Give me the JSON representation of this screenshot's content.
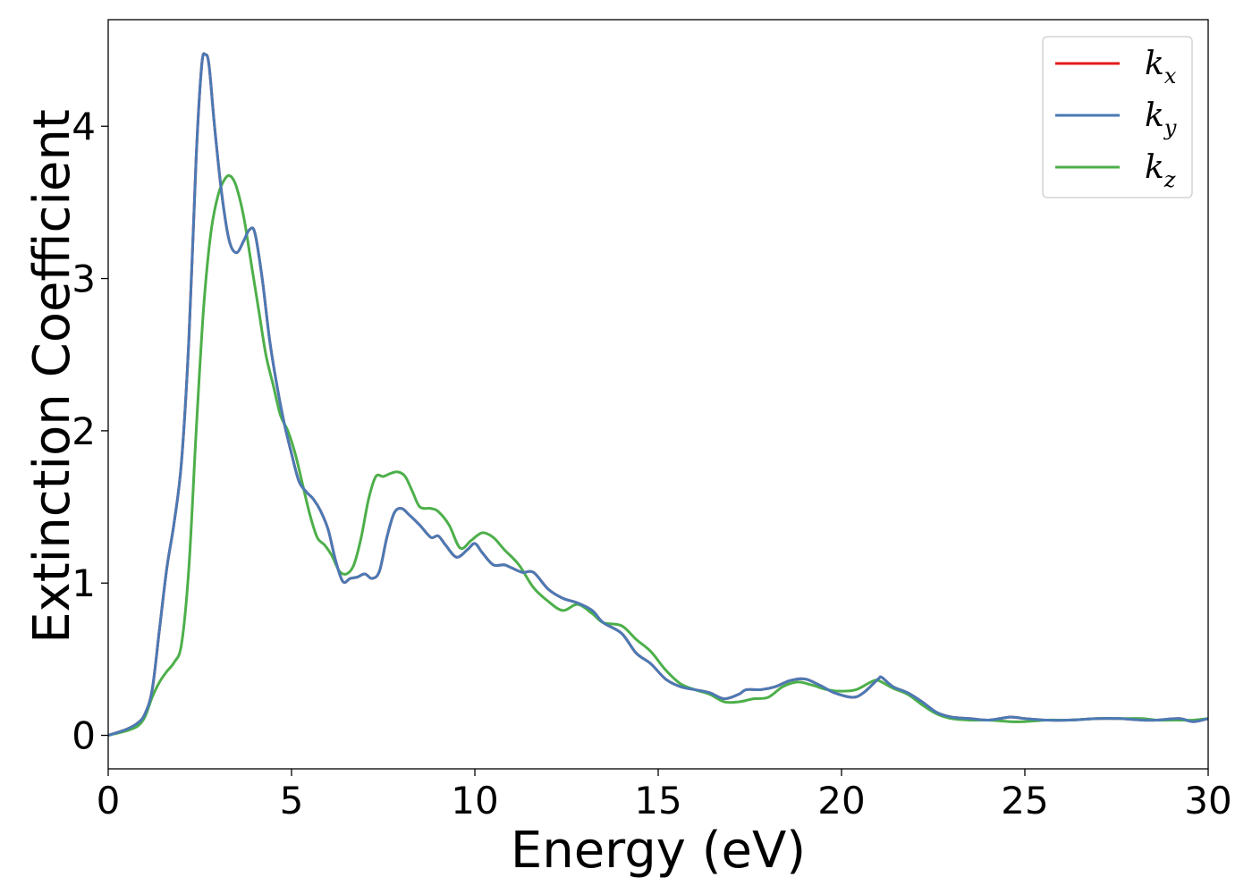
{
  "chart_data": {
    "type": "line",
    "xlabel": "Energy (eV)",
    "ylabel": "Extinction Coefficient",
    "xlim": [
      0,
      30
    ],
    "ylim": [
      -0.22,
      4.7
    ],
    "xticks": [
      0,
      5,
      10,
      15,
      20,
      25,
      30
    ],
    "yticks": [
      0,
      1,
      2,
      3,
      4
    ],
    "grid": false,
    "legend_position": "top-right",
    "series": [
      {
        "name": "kx",
        "base": "k",
        "sub": "x",
        "color": "#e41a1c",
        "points": [
          [
            0,
            0
          ],
          [
            0.5,
            0.04
          ],
          [
            0.8,
            0.08
          ],
          [
            1.0,
            0.14
          ],
          [
            1.2,
            0.3
          ],
          [
            1.4,
            0.7
          ],
          [
            1.6,
            1.1
          ],
          [
            1.8,
            1.4
          ],
          [
            2.0,
            1.8
          ],
          [
            2.2,
            2.6
          ],
          [
            2.4,
            3.8
          ],
          [
            2.55,
            4.4
          ],
          [
            2.65,
            4.47
          ],
          [
            2.75,
            4.4
          ],
          [
            2.9,
            4.0
          ],
          [
            3.1,
            3.55
          ],
          [
            3.3,
            3.25
          ],
          [
            3.5,
            3.17
          ],
          [
            3.7,
            3.25
          ],
          [
            3.85,
            3.32
          ],
          [
            4.0,
            3.3
          ],
          [
            4.2,
            3.0
          ],
          [
            4.4,
            2.6
          ],
          [
            4.6,
            2.3
          ],
          [
            4.8,
            2.05
          ],
          [
            5.0,
            1.85
          ],
          [
            5.2,
            1.67
          ],
          [
            5.4,
            1.6
          ],
          [
            5.6,
            1.55
          ],
          [
            5.8,
            1.47
          ],
          [
            6.0,
            1.35
          ],
          [
            6.2,
            1.15
          ],
          [
            6.4,
            1.01
          ],
          [
            6.6,
            1.03
          ],
          [
            6.8,
            1.04
          ],
          [
            7.0,
            1.06
          ],
          [
            7.2,
            1.03
          ],
          [
            7.4,
            1.08
          ],
          [
            7.6,
            1.3
          ],
          [
            7.8,
            1.46
          ],
          [
            8.0,
            1.49
          ],
          [
            8.2,
            1.45
          ],
          [
            8.5,
            1.38
          ],
          [
            8.8,
            1.3
          ],
          [
            9.0,
            1.31
          ],
          [
            9.2,
            1.25
          ],
          [
            9.5,
            1.17
          ],
          [
            9.8,
            1.22
          ],
          [
            10.0,
            1.26
          ],
          [
            10.2,
            1.2
          ],
          [
            10.5,
            1.12
          ],
          [
            10.8,
            1.12
          ],
          [
            11.0,
            1.1
          ],
          [
            11.3,
            1.07
          ],
          [
            11.6,
            1.07
          ],
          [
            12.0,
            0.96
          ],
          [
            12.4,
            0.9
          ],
          [
            12.8,
            0.87
          ],
          [
            13.2,
            0.82
          ],
          [
            13.5,
            0.74
          ],
          [
            14.0,
            0.67
          ],
          [
            14.4,
            0.54
          ],
          [
            14.8,
            0.47
          ],
          [
            15.2,
            0.37
          ],
          [
            15.6,
            0.32
          ],
          [
            16.0,
            0.3
          ],
          [
            16.4,
            0.28
          ],
          [
            16.8,
            0.24
          ],
          [
            17.2,
            0.27
          ],
          [
            17.4,
            0.3
          ],
          [
            17.8,
            0.3
          ],
          [
            18.2,
            0.32
          ],
          [
            18.6,
            0.36
          ],
          [
            19.0,
            0.37
          ],
          [
            19.4,
            0.33
          ],
          [
            19.8,
            0.28
          ],
          [
            20.3,
            0.25
          ],
          [
            20.6,
            0.28
          ],
          [
            21.0,
            0.37
          ],
          [
            21.1,
            0.38
          ],
          [
            21.4,
            0.32
          ],
          [
            21.8,
            0.28
          ],
          [
            22.2,
            0.22
          ],
          [
            22.6,
            0.15
          ],
          [
            23.0,
            0.12
          ],
          [
            23.5,
            0.11
          ],
          [
            24.0,
            0.1
          ],
          [
            24.6,
            0.12
          ],
          [
            25.0,
            0.11
          ],
          [
            25.6,
            0.1
          ],
          [
            26.2,
            0.1
          ],
          [
            27.0,
            0.11
          ],
          [
            27.6,
            0.11
          ],
          [
            28.2,
            0.1
          ],
          [
            28.6,
            0.1
          ],
          [
            29.2,
            0.11
          ],
          [
            29.6,
            0.09
          ],
          [
            30.0,
            0.11
          ]
        ]
      },
      {
        "name": "ky",
        "base": "k",
        "sub": "y",
        "color": "#4a7ab5",
        "points": [
          [
            0,
            0
          ],
          [
            0.5,
            0.04
          ],
          [
            0.8,
            0.08
          ],
          [
            1.0,
            0.14
          ],
          [
            1.2,
            0.3
          ],
          [
            1.4,
            0.7
          ],
          [
            1.6,
            1.1
          ],
          [
            1.8,
            1.4
          ],
          [
            2.0,
            1.8
          ],
          [
            2.2,
            2.6
          ],
          [
            2.4,
            3.8
          ],
          [
            2.55,
            4.4
          ],
          [
            2.65,
            4.47
          ],
          [
            2.75,
            4.4
          ],
          [
            2.9,
            4.0
          ],
          [
            3.1,
            3.55
          ],
          [
            3.3,
            3.25
          ],
          [
            3.5,
            3.17
          ],
          [
            3.7,
            3.25
          ],
          [
            3.85,
            3.32
          ],
          [
            4.0,
            3.3
          ],
          [
            4.2,
            3.0
          ],
          [
            4.4,
            2.6
          ],
          [
            4.6,
            2.3
          ],
          [
            4.8,
            2.05
          ],
          [
            5.0,
            1.85
          ],
          [
            5.2,
            1.67
          ],
          [
            5.4,
            1.6
          ],
          [
            5.6,
            1.55
          ],
          [
            5.8,
            1.47
          ],
          [
            6.0,
            1.35
          ],
          [
            6.2,
            1.15
          ],
          [
            6.4,
            1.01
          ],
          [
            6.6,
            1.03
          ],
          [
            6.8,
            1.04
          ],
          [
            7.0,
            1.06
          ],
          [
            7.2,
            1.03
          ],
          [
            7.4,
            1.08
          ],
          [
            7.6,
            1.3
          ],
          [
            7.8,
            1.46
          ],
          [
            8.0,
            1.49
          ],
          [
            8.2,
            1.45
          ],
          [
            8.5,
            1.38
          ],
          [
            8.8,
            1.3
          ],
          [
            9.0,
            1.31
          ],
          [
            9.2,
            1.25
          ],
          [
            9.5,
            1.17
          ],
          [
            9.8,
            1.22
          ],
          [
            10.0,
            1.26
          ],
          [
            10.2,
            1.2
          ],
          [
            10.5,
            1.12
          ],
          [
            10.8,
            1.12
          ],
          [
            11.0,
            1.1
          ],
          [
            11.3,
            1.07
          ],
          [
            11.6,
            1.07
          ],
          [
            12.0,
            0.96
          ],
          [
            12.4,
            0.9
          ],
          [
            12.8,
            0.87
          ],
          [
            13.2,
            0.82
          ],
          [
            13.5,
            0.74
          ],
          [
            14.0,
            0.67
          ],
          [
            14.4,
            0.54
          ],
          [
            14.8,
            0.47
          ],
          [
            15.2,
            0.37
          ],
          [
            15.6,
            0.32
          ],
          [
            16.0,
            0.3
          ],
          [
            16.4,
            0.28
          ],
          [
            16.8,
            0.24
          ],
          [
            17.2,
            0.27
          ],
          [
            17.4,
            0.3
          ],
          [
            17.8,
            0.3
          ],
          [
            18.2,
            0.32
          ],
          [
            18.6,
            0.36
          ],
          [
            19.0,
            0.37
          ],
          [
            19.4,
            0.33
          ],
          [
            19.8,
            0.28
          ],
          [
            20.3,
            0.25
          ],
          [
            20.6,
            0.28
          ],
          [
            21.0,
            0.37
          ],
          [
            21.1,
            0.38
          ],
          [
            21.4,
            0.32
          ],
          [
            21.8,
            0.28
          ],
          [
            22.2,
            0.22
          ],
          [
            22.6,
            0.15
          ],
          [
            23.0,
            0.12
          ],
          [
            23.5,
            0.11
          ],
          [
            24.0,
            0.1
          ],
          [
            24.6,
            0.12
          ],
          [
            25.0,
            0.11
          ],
          [
            25.6,
            0.1
          ],
          [
            26.2,
            0.1
          ],
          [
            27.0,
            0.11
          ],
          [
            27.6,
            0.11
          ],
          [
            28.2,
            0.1
          ],
          [
            28.6,
            0.1
          ],
          [
            29.2,
            0.11
          ],
          [
            29.6,
            0.09
          ],
          [
            30.0,
            0.11
          ]
        ]
      },
      {
        "name": "kz",
        "base": "k",
        "sub": "z",
        "color": "#4daf4a",
        "points": [
          [
            0,
            0
          ],
          [
            0.5,
            0.03
          ],
          [
            0.8,
            0.06
          ],
          [
            1.0,
            0.12
          ],
          [
            1.2,
            0.25
          ],
          [
            1.4,
            0.35
          ],
          [
            1.6,
            0.42
          ],
          [
            1.8,
            0.48
          ],
          [
            2.0,
            0.6
          ],
          [
            2.2,
            1.1
          ],
          [
            2.4,
            2.0
          ],
          [
            2.6,
            2.8
          ],
          [
            2.8,
            3.3
          ],
          [
            3.0,
            3.55
          ],
          [
            3.2,
            3.66
          ],
          [
            3.35,
            3.67
          ],
          [
            3.5,
            3.6
          ],
          [
            3.7,
            3.4
          ],
          [
            3.9,
            3.1
          ],
          [
            4.1,
            2.8
          ],
          [
            4.3,
            2.5
          ],
          [
            4.5,
            2.3
          ],
          [
            4.7,
            2.1
          ],
          [
            4.9,
            2.0
          ],
          [
            5.1,
            1.85
          ],
          [
            5.3,
            1.65
          ],
          [
            5.5,
            1.45
          ],
          [
            5.7,
            1.3
          ],
          [
            5.9,
            1.25
          ],
          [
            6.1,
            1.18
          ],
          [
            6.3,
            1.08
          ],
          [
            6.5,
            1.06
          ],
          [
            6.7,
            1.12
          ],
          [
            6.9,
            1.3
          ],
          [
            7.1,
            1.55
          ],
          [
            7.3,
            1.7
          ],
          [
            7.5,
            1.7
          ],
          [
            7.7,
            1.72
          ],
          [
            7.9,
            1.73
          ],
          [
            8.1,
            1.7
          ],
          [
            8.3,
            1.6
          ],
          [
            8.5,
            1.5
          ],
          [
            8.8,
            1.49
          ],
          [
            9.0,
            1.47
          ],
          [
            9.3,
            1.38
          ],
          [
            9.6,
            1.23
          ],
          [
            9.9,
            1.28
          ],
          [
            10.2,
            1.33
          ],
          [
            10.5,
            1.3
          ],
          [
            10.8,
            1.22
          ],
          [
            11.2,
            1.12
          ],
          [
            11.6,
            0.97
          ],
          [
            12.0,
            0.88
          ],
          [
            12.4,
            0.82
          ],
          [
            12.8,
            0.86
          ],
          [
            13.2,
            0.8
          ],
          [
            13.5,
            0.74
          ],
          [
            14.0,
            0.72
          ],
          [
            14.4,
            0.63
          ],
          [
            14.8,
            0.55
          ],
          [
            15.2,
            0.43
          ],
          [
            15.6,
            0.34
          ],
          [
            16.0,
            0.3
          ],
          [
            16.4,
            0.27
          ],
          [
            16.8,
            0.22
          ],
          [
            17.2,
            0.22
          ],
          [
            17.6,
            0.24
          ],
          [
            18.0,
            0.25
          ],
          [
            18.4,
            0.32
          ],
          [
            18.8,
            0.35
          ],
          [
            19.2,
            0.33
          ],
          [
            19.6,
            0.3
          ],
          [
            20.0,
            0.29
          ],
          [
            20.4,
            0.3
          ],
          [
            20.8,
            0.35
          ],
          [
            21.0,
            0.36
          ],
          [
            21.4,
            0.31
          ],
          [
            21.8,
            0.27
          ],
          [
            22.2,
            0.2
          ],
          [
            22.6,
            0.14
          ],
          [
            23.0,
            0.11
          ],
          [
            23.5,
            0.1
          ],
          [
            24.0,
            0.1
          ],
          [
            24.6,
            0.09
          ],
          [
            25.0,
            0.09
          ],
          [
            25.6,
            0.1
          ],
          [
            26.2,
            0.1
          ],
          [
            27.0,
            0.11
          ],
          [
            27.6,
            0.11
          ],
          [
            28.2,
            0.11
          ],
          [
            28.6,
            0.1
          ],
          [
            29.2,
            0.1
          ],
          [
            29.6,
            0.1
          ],
          [
            30.0,
            0.11
          ]
        ]
      }
    ]
  }
}
